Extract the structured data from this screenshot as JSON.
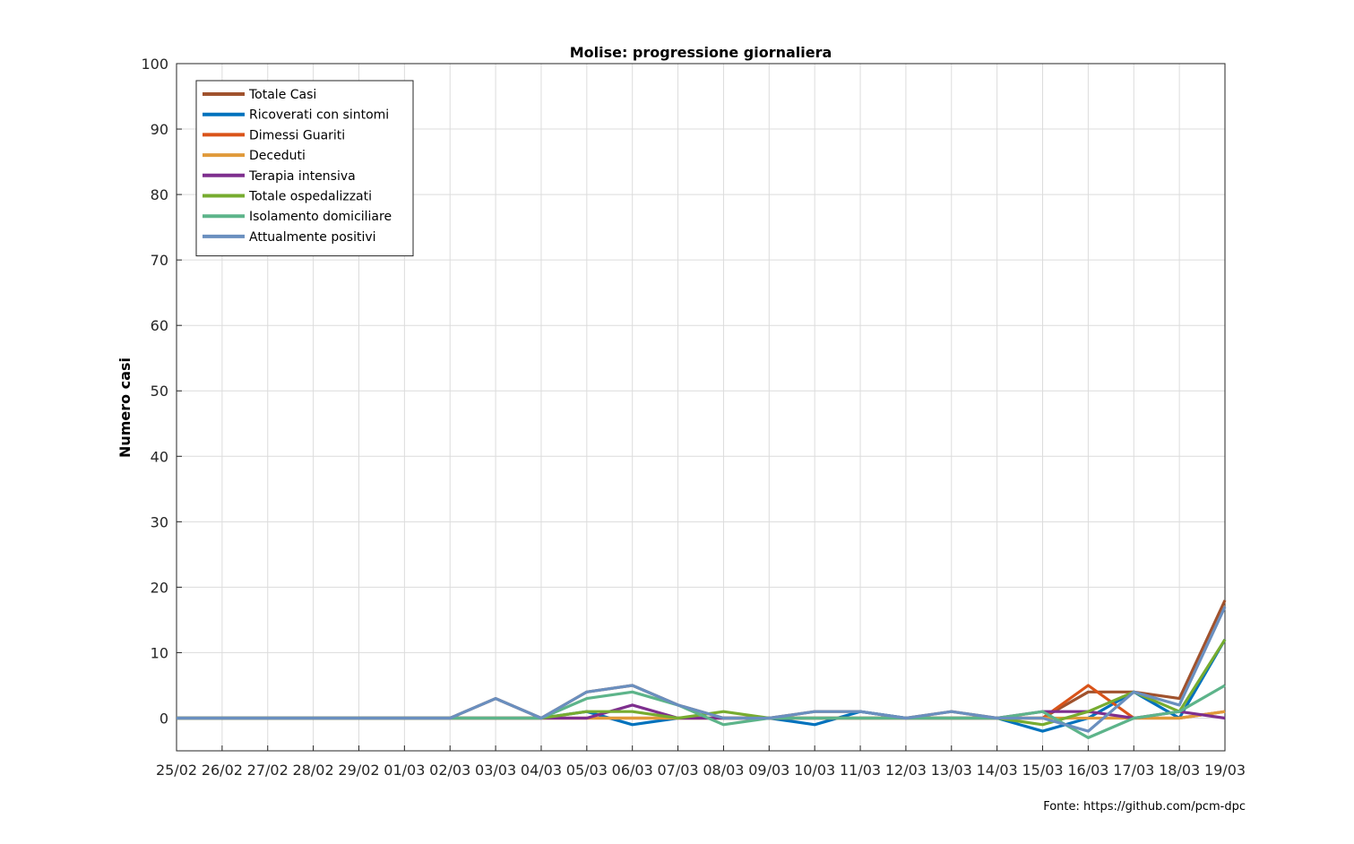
{
  "chart_data": {
    "type": "line",
    "title": "Molise: progressione giornaliera",
    "xlabel": "",
    "ylabel": "Numero casi",
    "ylim": [
      -5,
      100
    ],
    "yticks": [
      0,
      10,
      20,
      30,
      40,
      50,
      60,
      70,
      80,
      90,
      100
    ],
    "grid": true,
    "legend_position": "top-left",
    "categories": [
      "25/02",
      "26/02",
      "27/02",
      "28/02",
      "29/02",
      "01/03",
      "02/03",
      "03/03",
      "04/03",
      "05/03",
      "06/03",
      "07/03",
      "08/03",
      "09/03",
      "10/03",
      "11/03",
      "12/03",
      "13/03",
      "14/03",
      "15/03",
      "16/03",
      "17/03",
      "18/03",
      "19/03"
    ],
    "series": [
      {
        "name": "Totale Casi",
        "color": "#A0522D",
        "values": [
          0,
          0,
          0,
          0,
          0,
          0,
          0,
          3,
          0,
          4,
          5,
          2,
          0,
          0,
          1,
          1,
          0,
          1,
          0,
          0,
          4,
          4,
          3,
          18
        ]
      },
      {
        "name": "Ricoverati con sintomi",
        "color": "#0072BD",
        "values": [
          0,
          0,
          0,
          0,
          0,
          0,
          0,
          0,
          0,
          1,
          -1,
          0,
          0,
          0,
          -1,
          1,
          0,
          0,
          0,
          -2,
          0,
          4,
          0,
          12
        ]
      },
      {
        "name": "Dimessi Guariti",
        "color": "#D95319",
        "values": [
          0,
          0,
          0,
          0,
          0,
          0,
          0,
          0,
          0,
          0,
          0,
          0,
          0,
          0,
          0,
          0,
          0,
          0,
          0,
          0,
          5,
          0,
          0,
          1
        ]
      },
      {
        "name": "Deceduti",
        "color": "#E09A3A",
        "values": [
          0,
          0,
          0,
          0,
          0,
          0,
          0,
          0,
          0,
          0,
          0,
          0,
          0,
          0,
          0,
          0,
          0,
          0,
          0,
          0,
          0,
          0,
          0,
          1
        ]
      },
      {
        "name": "Terapia intensiva",
        "color": "#7E2F8E",
        "values": [
          0,
          0,
          0,
          0,
          0,
          0,
          0,
          0,
          0,
          0,
          2,
          0,
          0,
          0,
          0,
          0,
          0,
          0,
          0,
          1,
          1,
          0,
          1,
          0
        ]
      },
      {
        "name": "Totale ospedalizzati",
        "color": "#77AC30",
        "values": [
          0,
          0,
          0,
          0,
          0,
          0,
          0,
          0,
          0,
          1,
          1,
          0,
          1,
          0,
          0,
          0,
          0,
          0,
          0,
          -1,
          1,
          4,
          1,
          12
        ]
      },
      {
        "name": "Isolamento domiciliare",
        "color": "#5DB48A",
        "values": [
          0,
          0,
          0,
          0,
          0,
          0,
          0,
          0,
          0,
          3,
          4,
          2,
          -1,
          0,
          0,
          0,
          0,
          0,
          0,
          1,
          -3,
          0,
          1,
          5
        ]
      },
      {
        "name": "Attualmente positivi",
        "color": "#6A8FBF",
        "values": [
          0,
          0,
          0,
          0,
          0,
          0,
          0,
          3,
          0,
          4,
          5,
          2,
          0,
          0,
          1,
          1,
          0,
          1,
          0,
          0,
          -2,
          4,
          2,
          17
        ]
      }
    ]
  },
  "source_note": "Fonte: https://github.com/pcm-dpc"
}
